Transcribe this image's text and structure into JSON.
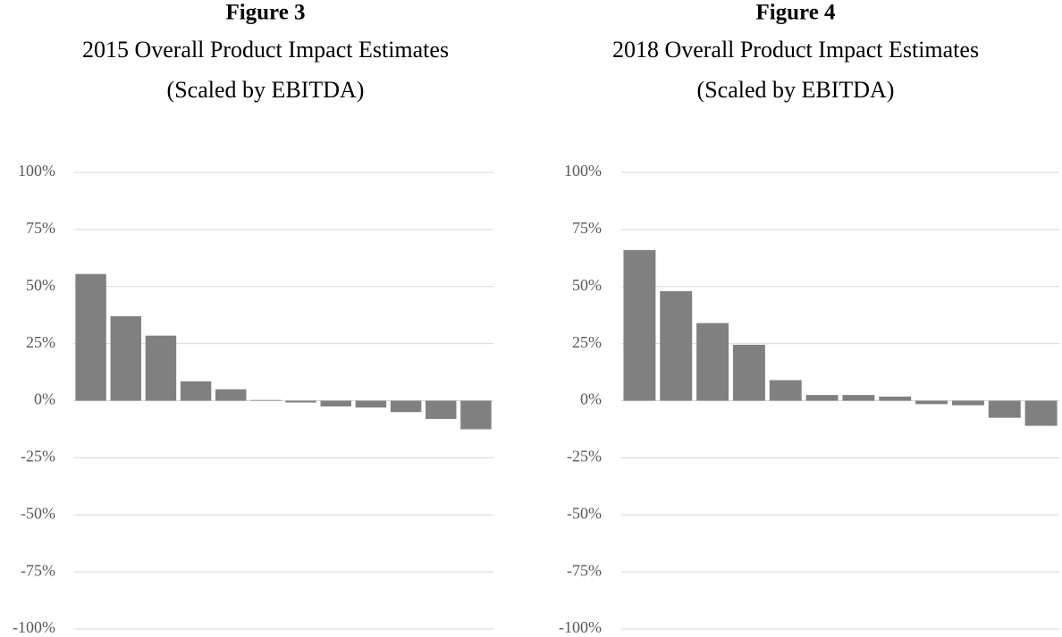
{
  "chart_data": [
    {
      "type": "bar",
      "title": "Figure 3",
      "subtitle": [
        "2015 Overall Product Impact Estimates",
        "(Scaled by EBITDA)"
      ],
      "categories": [
        null,
        null,
        null,
        null,
        null,
        null,
        null,
        null,
        null,
        null,
        null,
        null
      ],
      "values": [
        55.5,
        37,
        28.5,
        8.5,
        5,
        0.3,
        -0.8,
        -2.5,
        -3,
        -5,
        -8,
        -12.5
      ],
      "color": "#808080",
      "ylim": [
        -100,
        100
      ],
      "yticks": [
        {
          "value": -100,
          "label": "-100%"
        },
        {
          "value": -75,
          "label": "-75%"
        },
        {
          "value": -50,
          "label": "-50%"
        },
        {
          "value": -25,
          "label": "-25%"
        },
        {
          "value": 0,
          "label": "0%"
        },
        {
          "value": 25,
          "label": "25%"
        },
        {
          "value": 50,
          "label": "50%"
        },
        {
          "value": 75,
          "label": "75%"
        },
        {
          "value": 100,
          "label": "100%"
        }
      ],
      "grid": true
    },
    {
      "type": "bar",
      "title": "Figure 4",
      "subtitle": [
        "2018 Overall Product Impact Estimates",
        "(Scaled by EBITDA)"
      ],
      "categories": [
        null,
        null,
        null,
        null,
        null,
        null,
        null,
        null,
        null,
        null,
        null,
        null
      ],
      "values": [
        66,
        48,
        34,
        24.5,
        9,
        2.5,
        2.5,
        1.8,
        -1.5,
        -2,
        -7.5,
        -11
      ],
      "color": "#808080",
      "ylim": [
        -100,
        100
      ],
      "yticks": [
        {
          "value": -100,
          "label": "-100%"
        },
        {
          "value": -75,
          "label": "-75%"
        },
        {
          "value": -50,
          "label": "-50%"
        },
        {
          "value": -25,
          "label": "-25%"
        },
        {
          "value": 0,
          "label": "0%"
        },
        {
          "value": 25,
          "label": "25%"
        },
        {
          "value": 50,
          "label": "50%"
        },
        {
          "value": 75,
          "label": "75%"
        },
        {
          "value": 100,
          "label": "100%"
        }
      ],
      "grid": true
    }
  ]
}
